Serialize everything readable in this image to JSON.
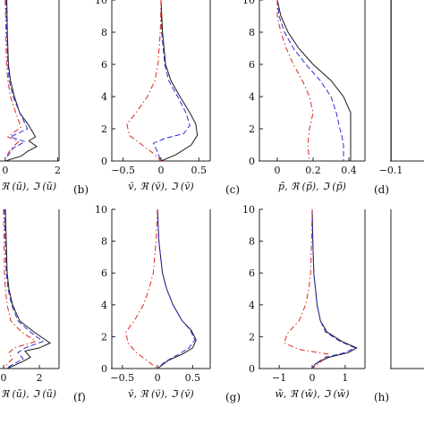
{
  "colors": {
    "solid": "#1a1a1a",
    "real": "#2b2bd9",
    "imag": "#e0261e"
  },
  "chart_data": [
    {
      "id": "a-top",
      "type": "line",
      "panel_letter": "",
      "xlabel": "ũ, ℜ (ũ), ℑ (ũ)",
      "xlim": [
        -0.2,
        2.05
      ],
      "ylim": [
        0,
        10
      ],
      "xticks": [
        0,
        2
      ],
      "xtick_labels": [
        "0",
        "2"
      ],
      "yticks": [],
      "ytick_labels": [],
      "series": [
        {
          "style": "solid",
          "x": [
            0.06,
            0.08,
            0.12,
            0.2,
            0.35,
            0.55,
            0.9,
            1.15,
            0.9,
            1.2,
            0.85,
            0.6,
            0.0
          ],
          "y": [
            10,
            8,
            6,
            5,
            4,
            3,
            2.2,
            1.5,
            1.25,
            0.9,
            0.6,
            0.3,
            0
          ]
        },
        {
          "style": "real",
          "x": [
            0.03,
            0.06,
            0.1,
            0.15,
            0.3,
            0.55,
            0.85,
            0.2,
            0.75,
            0.3,
            0.05
          ],
          "y": [
            10,
            8,
            6,
            5,
            4,
            3,
            2,
            1.5,
            1.2,
            0.8,
            0.2
          ]
        },
        {
          "style": "imag",
          "x": [
            0.0,
            0.02,
            0.05,
            0.1,
            0.2,
            0.4,
            0.6,
            0.1,
            0.5,
            0.2,
            0.0
          ],
          "y": [
            10,
            8,
            6,
            5,
            4,
            3,
            2.1,
            1.5,
            1.2,
            0.7,
            0.2
          ]
        }
      ]
    },
    {
      "id": "b",
      "type": "line",
      "panel_letter": "(b)",
      "xlabel": "ṽ, ℜ (ṽ), ℑ (ṽ)",
      "xlim": [
        -0.65,
        0.65
      ],
      "ylim": [
        0,
        10
      ],
      "xticks": [
        -0.5,
        0,
        0.5
      ],
      "xtick_labels": [
        "−0.5",
        "0",
        "0.5"
      ],
      "yticks": [
        0,
        2,
        4,
        6,
        8,
        10
      ],
      "ytick_labels": [
        "0",
        "2",
        "4",
        "6",
        "8",
        "10"
      ],
      "series": [
        {
          "style": "solid",
          "x": [
            0.0,
            0.02,
            0.06,
            0.13,
            0.25,
            0.38,
            0.46,
            0.48,
            0.4,
            0.2,
            0.0
          ],
          "y": [
            10,
            8,
            6,
            5,
            4,
            3,
            2.3,
            1.6,
            1.0,
            0.4,
            0
          ]
        },
        {
          "style": "real",
          "x": [
            0.0,
            0.01,
            0.05,
            0.1,
            0.22,
            0.33,
            0.38,
            0.3,
            0.05,
            -0.1,
            -0.05,
            0.0
          ],
          "y": [
            10,
            8,
            6,
            5,
            4,
            3,
            2.2,
            1.7,
            1.4,
            1.1,
            0.6,
            0
          ]
        },
        {
          "style": "imag",
          "x": [
            0.0,
            -0.01,
            -0.04,
            -0.08,
            -0.18,
            -0.33,
            -0.45,
            -0.42,
            -0.25,
            -0.08,
            0.0
          ],
          "y": [
            10,
            8,
            6,
            5,
            4,
            3,
            2.3,
            1.6,
            1.0,
            0.4,
            0
          ]
        }
      ]
    },
    {
      "id": "c",
      "type": "line",
      "panel_letter": "(c)",
      "xlabel": "p̃, ℜ (p̃), ℑ (p̃)",
      "xlim": [
        -0.1,
        0.49
      ],
      "ylim": [
        0,
        10
      ],
      "xticks": [
        0,
        0.2,
        0.4
      ],
      "xtick_labels": [
        "0",
        "0.2",
        "0.4"
      ],
      "yticks": [
        0,
        2,
        4,
        6,
        8,
        10
      ],
      "ytick_labels": [
        "0",
        "2",
        "4",
        "6",
        "8",
        "10"
      ],
      "series": [
        {
          "style": "solid",
          "x": [
            0.0,
            0.02,
            0.06,
            0.12,
            0.2,
            0.3,
            0.37,
            0.41,
            0.41,
            0.41
          ],
          "y": [
            10,
            9,
            8,
            7,
            6,
            5,
            4,
            3,
            2,
            0
          ]
        },
        {
          "style": "real",
          "x": [
            0.0,
            0.01,
            0.04,
            0.09,
            0.16,
            0.24,
            0.3,
            0.33,
            0.35,
            0.36,
            0.37,
            0.37
          ],
          "y": [
            10,
            9,
            8,
            7,
            6,
            5,
            4,
            3,
            2,
            1.6,
            1.0,
            0
          ]
        },
        {
          "style": "imag",
          "x": [
            0.0,
            0.0,
            0.02,
            0.05,
            0.09,
            0.14,
            0.18,
            0.2,
            0.18,
            0.17,
            0.18
          ],
          "y": [
            10,
            9,
            8,
            7,
            6,
            5,
            4,
            3,
            2,
            1.0,
            0
          ]
        }
      ]
    },
    {
      "id": "d",
      "type": "line",
      "panel_letter": "(d)",
      "xlabel": "",
      "xlim": [
        -0.1,
        0.1
      ],
      "ylim": [
        0,
        10
      ],
      "xticks": [
        -0.1
      ],
      "xtick_labels": [
        "−0.1"
      ],
      "yticks": [],
      "ytick_labels": [],
      "series": [
        {
          "style": "solid",
          "x": [
            -0.099,
            -0.099
          ],
          "y": [
            10,
            0
          ]
        }
      ]
    },
    {
      "id": "e",
      "type": "line",
      "panel_letter": "",
      "xlabel": "ũ, ℜ (ũ), ℑ (ũ)",
      "xlim": [
        -0.2,
        3.1
      ],
      "ylim": [
        0,
        10
      ],
      "xticks": [
        0,
        2
      ],
      "xtick_labels": [
        "0",
        "2"
      ],
      "yticks": [],
      "ytick_labels": [],
      "series": [
        {
          "style": "solid",
          "x": [
            0.1,
            0.15,
            0.2,
            0.3,
            0.5,
            0.9,
            1.7,
            2.6,
            2.0,
            1.2,
            1.5,
            1.0,
            0.2
          ],
          "y": [
            10,
            8,
            6,
            5,
            4,
            3,
            2.3,
            1.6,
            1.3,
            1.1,
            0.7,
            0.4,
            0
          ]
        },
        {
          "style": "real",
          "x": [
            0.05,
            0.1,
            0.15,
            0.25,
            0.45,
            0.8,
            1.5,
            2.2,
            1.2,
            0.8,
            1.1,
            0.6,
            0.1
          ],
          "y": [
            10,
            8,
            6,
            5,
            4,
            3,
            2.3,
            1.7,
            1.3,
            1.0,
            0.6,
            0.3,
            0
          ]
        },
        {
          "style": "imag",
          "x": [
            0.0,
            0.03,
            0.05,
            0.1,
            0.2,
            0.4,
            1.0,
            1.8,
            0.6,
            0.3,
            0.5,
            0.2,
            0.0
          ],
          "y": [
            10,
            8,
            6,
            5,
            4,
            3,
            2.3,
            1.7,
            1.3,
            1.0,
            0.6,
            0.3,
            0
          ]
        }
      ]
    },
    {
      "id": "f",
      "type": "line",
      "panel_letter": "(f)",
      "xlabel": "ṽ, ℜ (ṽ), ℑ (ṽ)",
      "xlim": [
        -0.65,
        0.75
      ],
      "ylim": [
        0,
        10
      ],
      "xticks": [
        -0.5,
        0,
        0.5
      ],
      "xtick_labels": [
        "−0.5",
        "0",
        "0.5"
      ],
      "yticks": [
        0,
        2,
        4,
        6,
        8,
        10
      ],
      "ytick_labels": [
        "0",
        "2",
        "4",
        "6",
        "8",
        "10"
      ],
      "series": [
        {
          "style": "solid",
          "x": [
            0.0,
            0.02,
            0.07,
            0.13,
            0.22,
            0.35,
            0.48,
            0.55,
            0.5,
            0.35,
            0.15,
            0.0
          ],
          "y": [
            10,
            8,
            6,
            5,
            4,
            3,
            2.4,
            1.8,
            1.3,
            0.9,
            0.5,
            0
          ]
        },
        {
          "style": "real",
          "x": [
            0.0,
            0.02,
            0.07,
            0.13,
            0.22,
            0.35,
            0.47,
            0.53,
            0.45,
            0.3,
            0.1,
            0.0
          ],
          "y": [
            10,
            8,
            6,
            5,
            4,
            3,
            2.4,
            1.8,
            1.3,
            0.9,
            0.4,
            0
          ]
        },
        {
          "style": "imag",
          "x": [
            0.0,
            -0.02,
            -0.06,
            -0.12,
            -0.2,
            -0.33,
            -0.45,
            -0.42,
            -0.3,
            -0.15,
            0.0
          ],
          "y": [
            10,
            8,
            6,
            5,
            4,
            3,
            2.3,
            1.6,
            1.0,
            0.5,
            0
          ]
        }
      ]
    },
    {
      "id": "g",
      "type": "line",
      "panel_letter": "(g)",
      "xlabel": "w̃, ℜ (w̃), ℑ (w̃)",
      "xlim": [
        -1.6,
        1.6
      ],
      "ylim": [
        0,
        10
      ],
      "xticks": [
        -1,
        0,
        1
      ],
      "xtick_labels": [
        "−1",
        "0",
        "1"
      ],
      "yticks": [
        0,
        2,
        4,
        6,
        8,
        10
      ],
      "ytick_labels": [
        "0",
        "2",
        "4",
        "6",
        "8",
        "10"
      ],
      "series": [
        {
          "style": "solid",
          "x": [
            0.0,
            0.02,
            0.05,
            0.1,
            0.15,
            0.25,
            0.45,
            0.9,
            1.35,
            1.1,
            0.5,
            0.1,
            0.0
          ],
          "y": [
            10,
            8,
            6,
            5,
            4,
            3,
            2.3,
            1.7,
            1.3,
            1.0,
            0.7,
            0.3,
            0
          ]
        },
        {
          "style": "real",
          "x": [
            0.0,
            0.02,
            0.05,
            0.1,
            0.15,
            0.25,
            0.4,
            0.85,
            1.3,
            1.0,
            0.4,
            0.1,
            0.0
          ],
          "y": [
            10,
            8,
            6,
            5,
            4,
            3,
            2.3,
            1.7,
            1.3,
            1.0,
            0.7,
            0.3,
            0
          ]
        },
        {
          "style": "imag",
          "x": [
            0.0,
            -0.02,
            -0.05,
            -0.1,
            -0.2,
            -0.4,
            -0.75,
            -0.85,
            -0.4,
            0.5,
            0.3,
            0.0
          ],
          "y": [
            10,
            8,
            6,
            5,
            4,
            3,
            2.2,
            1.6,
            1.2,
            0.9,
            0.5,
            0
          ]
        }
      ]
    },
    {
      "id": "h",
      "type": "line",
      "panel_letter": "(h)",
      "xlabel": "",
      "xlim": [
        -0.1,
        0.1
      ],
      "ylim": [
        0,
        10
      ],
      "xticks": [],
      "xtick_labels": [],
      "yticks": [],
      "ytick_labels": [],
      "series": []
    }
  ]
}
